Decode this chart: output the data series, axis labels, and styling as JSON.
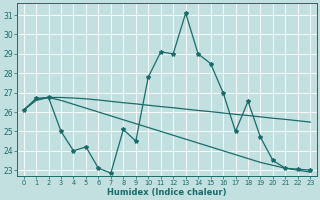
{
  "xlabel": "Humidex (Indice chaleur)",
  "bg_color": "#c2e0e0",
  "grid_color": "#ffffff",
  "line_color": "#1a6b6b",
  "xlim": [
    -0.5,
    23.5
  ],
  "ylim": [
    22.7,
    31.6
  ],
  "yticks": [
    23,
    24,
    25,
    26,
    27,
    28,
    29,
    30,
    31
  ],
  "xticks": [
    0,
    1,
    2,
    3,
    4,
    5,
    6,
    7,
    8,
    9,
    10,
    11,
    12,
    13,
    14,
    15,
    16,
    17,
    18,
    19,
    20,
    21,
    22,
    23
  ],
  "xtick_labels": [
    "0",
    "1",
    "2",
    "3",
    "4",
    "5",
    "6",
    "7",
    "8",
    "9",
    "10",
    "11",
    "12",
    "13",
    "14",
    "15",
    "16",
    "17",
    "18",
    "19",
    "20",
    "21",
    "22",
    "23"
  ],
  "series_upper_x": [
    0,
    1,
    2,
    3,
    4,
    5,
    6,
    7,
    8,
    9,
    10,
    11,
    12,
    13,
    14,
    15,
    16,
    17,
    18,
    19,
    20,
    21,
    22,
    23
  ],
  "series_upper_y": [
    26.1,
    26.65,
    26.75,
    26.75,
    26.72,
    26.68,
    26.62,
    26.55,
    26.48,
    26.42,
    26.35,
    26.28,
    26.22,
    26.15,
    26.08,
    26.02,
    25.95,
    25.88,
    25.82,
    25.75,
    25.68,
    25.62,
    25.55,
    25.48
  ],
  "series_lower_x": [
    0,
    1,
    2,
    3,
    4,
    5,
    6,
    7,
    8,
    9,
    10,
    11,
    12,
    13,
    14,
    15,
    16,
    17,
    18,
    19,
    20,
    21,
    22,
    23
  ],
  "series_lower_y": [
    26.1,
    26.6,
    26.75,
    26.6,
    26.4,
    26.2,
    26.0,
    25.8,
    25.6,
    25.4,
    25.2,
    25.0,
    24.8,
    24.6,
    24.4,
    24.2,
    24.0,
    23.8,
    23.6,
    23.4,
    23.25,
    23.1,
    23.0,
    22.9
  ],
  "series_main_x": [
    0,
    1,
    2,
    3,
    4,
    5,
    6,
    7,
    8,
    9,
    10,
    11,
    12,
    13,
    14,
    15,
    16,
    17,
    18,
    19,
    20,
    21,
    22,
    23
  ],
  "series_main_y": [
    26.1,
    26.7,
    26.75,
    25.0,
    24.0,
    24.2,
    23.1,
    22.85,
    25.1,
    24.5,
    27.8,
    29.1,
    29.0,
    31.1,
    29.0,
    28.5,
    27.0,
    25.0,
    26.55,
    24.7,
    23.5,
    23.1,
    23.05,
    23.0
  ]
}
